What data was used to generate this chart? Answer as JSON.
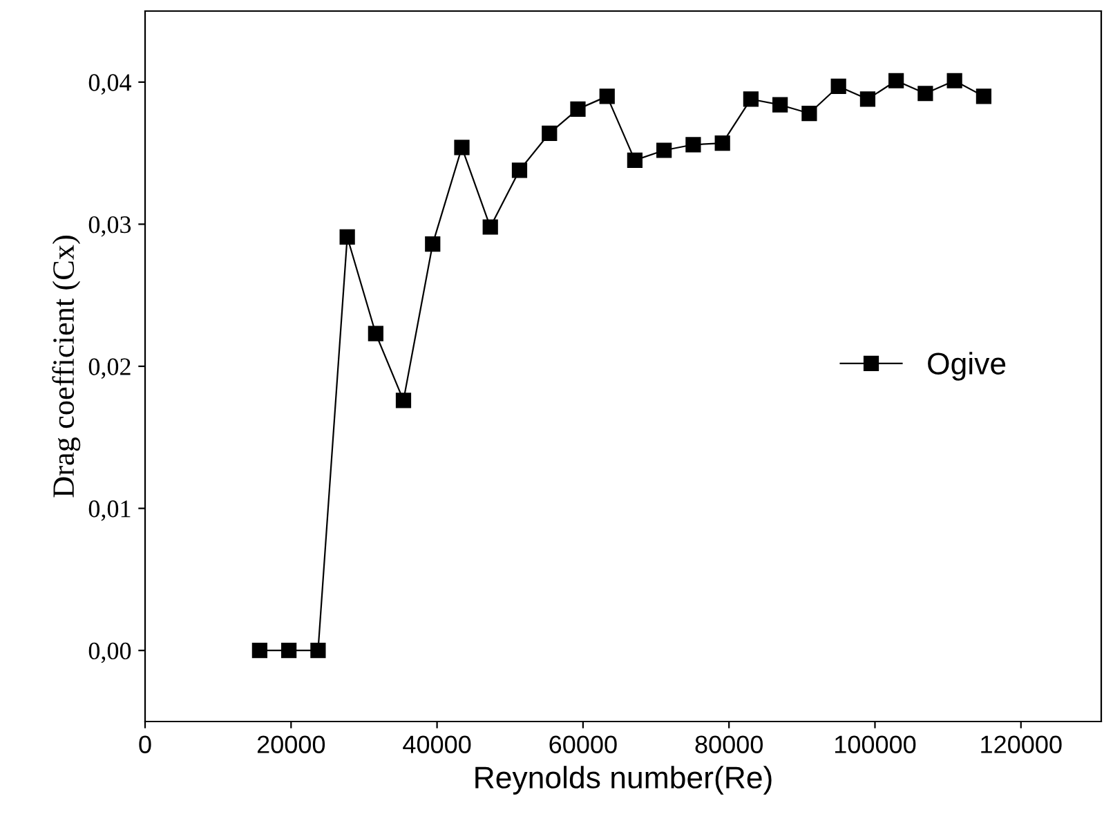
{
  "chart_data": {
    "type": "line",
    "xlabel": "Reynolds number(Re)",
    "ylabel": "Drag coefficient (Cx)",
    "x": [
      15700,
      19700,
      23700,
      27700,
      31600,
      35400,
      39400,
      43400,
      47300,
      51300,
      55400,
      59300,
      63300,
      67100,
      71100,
      75100,
      79100,
      83000,
      87000,
      91000,
      95000,
      99000,
      102900,
      106900,
      110900,
      114900
    ],
    "series": [
      {
        "name": "Ogive",
        "color": "#000000",
        "values": [
          0.0,
          0.0,
          0.0,
          0.0291,
          0.0223,
          0.0176,
          0.0286,
          0.0354,
          0.0298,
          0.0338,
          0.0364,
          0.0381,
          0.039,
          0.0345,
          0.0352,
          0.0356,
          0.0357,
          0.0388,
          0.0384,
          0.0378,
          0.0397,
          0.0388,
          0.0401,
          0.0392,
          0.0401,
          0.039
        ]
      }
    ],
    "xlim": [
      0,
      131000
    ],
    "ylim": [
      -0.005,
      0.045
    ],
    "xticks": [
      0,
      20000,
      40000,
      60000,
      80000,
      100000,
      120000
    ],
    "yticks": [
      {
        "value": 0,
        "label": "0,00"
      },
      {
        "value": 0.01,
        "label": "0,01"
      },
      {
        "value": 0.02,
        "label": "0,02"
      },
      {
        "value": 0.03,
        "label": "0,03"
      },
      {
        "value": 0.04,
        "label": "0,04"
      }
    ],
    "marker": "square",
    "line_style": "solid",
    "legend": "right",
    "grid": false
  }
}
